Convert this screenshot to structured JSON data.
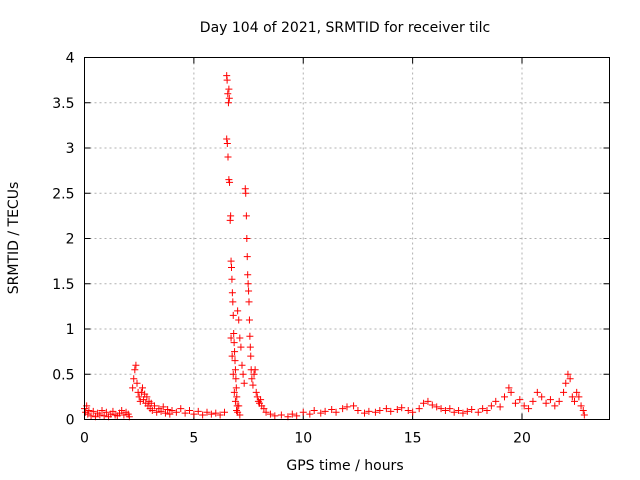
{
  "chart_data": {
    "type": "scatter",
    "title": "Day 104 of 2021, SRMTID for receiver tilc",
    "xlabel": "GPS time / hours",
    "ylabel": "SRMTID / TECUs",
    "xlim": [
      0,
      24
    ],
    "ylim": [
      0,
      4
    ],
    "x_ticks": [
      0,
      5,
      10,
      15,
      20
    ],
    "x_tick_labels": [
      "0",
      "5",
      "10",
      "15",
      "20"
    ],
    "y_ticks": [
      0,
      0.5,
      1,
      1.5,
      2,
      2.5,
      3,
      3.5,
      4
    ],
    "y_tick_labels": [
      "0",
      "0.5",
      "1",
      "1.5",
      "2",
      "2.5",
      "3",
      "3.5",
      "4"
    ],
    "grid": true,
    "marker": "+",
    "series": [
      {
        "name": "SRMTID",
        "color": "#ff0000",
        "points": [
          [
            0.0,
            0.12
          ],
          [
            0.05,
            0.08
          ],
          [
            0.1,
            0.15
          ],
          [
            0.15,
            0.06
          ],
          [
            0.2,
            0.1
          ],
          [
            0.3,
            0.04
          ],
          [
            0.4,
            0.09
          ],
          [
            0.5,
            0.03
          ],
          [
            0.6,
            0.07
          ],
          [
            0.7,
            0.05
          ],
          [
            0.8,
            0.1
          ],
          [
            0.9,
            0.04
          ],
          [
            1.0,
            0.08
          ],
          [
            1.1,
            0.03
          ],
          [
            1.2,
            0.06
          ],
          [
            1.3,
            0.09
          ],
          [
            1.4,
            0.05
          ],
          [
            1.5,
            0.04
          ],
          [
            1.6,
            0.07
          ],
          [
            1.7,
            0.1
          ],
          [
            1.8,
            0.05
          ],
          [
            1.9,
            0.08
          ],
          [
            2.0,
            0.06
          ],
          [
            2.05,
            0.03
          ],
          [
            2.2,
            0.35
          ],
          [
            2.25,
            0.45
          ],
          [
            2.3,
            0.55
          ],
          [
            2.35,
            0.6
          ],
          [
            2.4,
            0.4
          ],
          [
            2.45,
            0.3
          ],
          [
            2.5,
            0.25
          ],
          [
            2.55,
            0.2
          ],
          [
            2.6,
            0.3
          ],
          [
            2.65,
            0.35
          ],
          [
            2.7,
            0.22
          ],
          [
            2.75,
            0.28
          ],
          [
            2.8,
            0.18
          ],
          [
            2.85,
            0.25
          ],
          [
            2.9,
            0.15
          ],
          [
            2.95,
            0.2
          ],
          [
            3.0,
            0.12
          ],
          [
            3.05,
            0.18
          ],
          [
            3.1,
            0.1
          ],
          [
            3.2,
            0.15
          ],
          [
            3.3,
            0.08
          ],
          [
            3.4,
            0.12
          ],
          [
            3.5,
            0.09
          ],
          [
            3.6,
            0.14
          ],
          [
            3.7,
            0.07
          ],
          [
            3.8,
            0.11
          ],
          [
            3.9,
            0.06
          ],
          [
            4.0,
            0.1
          ],
          [
            4.2,
            0.08
          ],
          [
            4.4,
            0.12
          ],
          [
            4.6,
            0.07
          ],
          [
            4.8,
            0.1
          ],
          [
            5.0,
            0.06
          ],
          [
            5.2,
            0.09
          ],
          [
            5.4,
            0.05
          ],
          [
            5.6,
            0.08
          ],
          [
            5.8,
            0.06
          ],
          [
            6.0,
            0.07
          ],
          [
            6.2,
            0.05
          ],
          [
            6.4,
            0.08
          ],
          [
            6.5,
            3.8
          ],
          [
            6.52,
            3.75
          ],
          [
            6.55,
            3.6
          ],
          [
            6.58,
            3.5
          ],
          [
            6.6,
            3.65
          ],
          [
            6.62,
            3.55
          ],
          [
            6.5,
            3.1
          ],
          [
            6.53,
            3.05
          ],
          [
            6.56,
            2.9
          ],
          [
            6.6,
            2.65
          ],
          [
            6.63,
            2.62
          ],
          [
            6.66,
            2.2
          ],
          [
            6.68,
            2.25
          ],
          [
            6.7,
            1.75
          ],
          [
            6.72,
            1.68
          ],
          [
            6.74,
            1.55
          ],
          [
            6.76,
            1.4
          ],
          [
            6.78,
            1.3
          ],
          [
            6.8,
            1.15
          ],
          [
            6.82,
            0.95
          ],
          [
            6.84,
            0.85
          ],
          [
            6.86,
            0.75
          ],
          [
            6.88,
            0.65
          ],
          [
            6.9,
            0.55
          ],
          [
            6.92,
            0.45
          ],
          [
            6.94,
            0.35
          ],
          [
            6.96,
            0.25
          ],
          [
            6.98,
            0.15
          ],
          [
            7.0,
            1.2
          ],
          [
            7.05,
            1.1
          ],
          [
            7.1,
            0.9
          ],
          [
            7.15,
            0.8
          ],
          [
            7.2,
            0.6
          ],
          [
            7.25,
            0.5
          ],
          [
            7.3,
            0.4
          ],
          [
            7.35,
            2.55
          ],
          [
            7.37,
            2.5
          ],
          [
            7.4,
            2.25
          ],
          [
            7.42,
            2.0
          ],
          [
            7.44,
            1.8
          ],
          [
            7.46,
            1.6
          ],
          [
            7.48,
            1.5
          ],
          [
            7.5,
            1.42
          ],
          [
            7.52,
            1.3
          ],
          [
            7.54,
            1.1
          ],
          [
            7.56,
            0.92
          ],
          [
            7.58,
            0.8
          ],
          [
            7.6,
            0.7
          ],
          [
            7.62,
            0.55
          ],
          [
            7.65,
            0.45
          ],
          [
            7.7,
            0.38
          ],
          [
            7.75,
            0.5
          ],
          [
            7.8,
            0.55
          ],
          [
            7.85,
            0.3
          ],
          [
            7.9,
            0.25
          ],
          [
            7.95,
            0.2
          ],
          [
            8.0,
            0.18
          ],
          [
            8.05,
            0.22
          ],
          [
            8.1,
            0.15
          ],
          [
            8.2,
            0.12
          ],
          [
            8.3,
            0.08
          ],
          [
            6.7,
            0.9
          ],
          [
            6.75,
            0.7
          ],
          [
            6.8,
            0.5
          ],
          [
            6.85,
            0.3
          ],
          [
            6.9,
            0.2
          ],
          [
            6.95,
            0.1
          ],
          [
            7.0,
            0.08
          ],
          [
            7.05,
            0.15
          ],
          [
            7.1,
            0.05
          ],
          [
            8.5,
            0.06
          ],
          [
            8.7,
            0.04
          ],
          [
            9.0,
            0.05
          ],
          [
            9.3,
            0.03
          ],
          [
            9.5,
            0.06
          ],
          [
            9.7,
            0.04
          ],
          [
            10.0,
            0.08
          ],
          [
            10.3,
            0.06
          ],
          [
            10.5,
            0.1
          ],
          [
            10.8,
            0.07
          ],
          [
            11.0,
            0.09
          ],
          [
            11.3,
            0.11
          ],
          [
            11.5,
            0.08
          ],
          [
            11.8,
            0.12
          ],
          [
            12.0,
            0.14
          ],
          [
            12.3,
            0.15
          ],
          [
            12.5,
            0.1
          ],
          [
            12.8,
            0.07
          ],
          [
            13.0,
            0.09
          ],
          [
            13.3,
            0.08
          ],
          [
            13.5,
            0.1
          ],
          [
            13.8,
            0.12
          ],
          [
            14.0,
            0.09
          ],
          [
            14.3,
            0.11
          ],
          [
            14.5,
            0.13
          ],
          [
            14.8,
            0.1
          ],
          [
            15.0,
            0.08
          ],
          [
            15.3,
            0.12
          ],
          [
            15.5,
            0.18
          ],
          [
            15.7,
            0.2
          ],
          [
            15.9,
            0.16
          ],
          [
            16.1,
            0.14
          ],
          [
            16.3,
            0.12
          ],
          [
            16.5,
            0.1
          ],
          [
            16.7,
            0.12
          ],
          [
            16.9,
            0.08
          ],
          [
            17.1,
            0.1
          ],
          [
            17.3,
            0.07
          ],
          [
            17.5,
            0.09
          ],
          [
            17.7,
            0.11
          ],
          [
            18.0,
            0.08
          ],
          [
            18.2,
            0.12
          ],
          [
            18.4,
            0.1
          ],
          [
            18.6,
            0.15
          ],
          [
            18.8,
            0.2
          ],
          [
            19.0,
            0.14
          ],
          [
            19.2,
            0.25
          ],
          [
            19.4,
            0.35
          ],
          [
            19.5,
            0.3
          ],
          [
            19.7,
            0.18
          ],
          [
            19.9,
            0.22
          ],
          [
            20.1,
            0.15
          ],
          [
            20.3,
            0.12
          ],
          [
            20.5,
            0.2
          ],
          [
            20.7,
            0.3
          ],
          [
            20.9,
            0.25
          ],
          [
            21.1,
            0.18
          ],
          [
            21.3,
            0.22
          ],
          [
            21.5,
            0.15
          ],
          [
            21.7,
            0.2
          ],
          [
            21.9,
            0.3
          ],
          [
            22.0,
            0.4
          ],
          [
            22.1,
            0.5
          ],
          [
            22.2,
            0.45
          ],
          [
            22.3,
            0.25
          ],
          [
            22.4,
            0.2
          ],
          [
            22.5,
            0.3
          ],
          [
            22.6,
            0.25
          ],
          [
            22.7,
            0.15
          ],
          [
            22.8,
            0.1
          ],
          [
            22.85,
            0.05
          ]
        ]
      }
    ]
  }
}
